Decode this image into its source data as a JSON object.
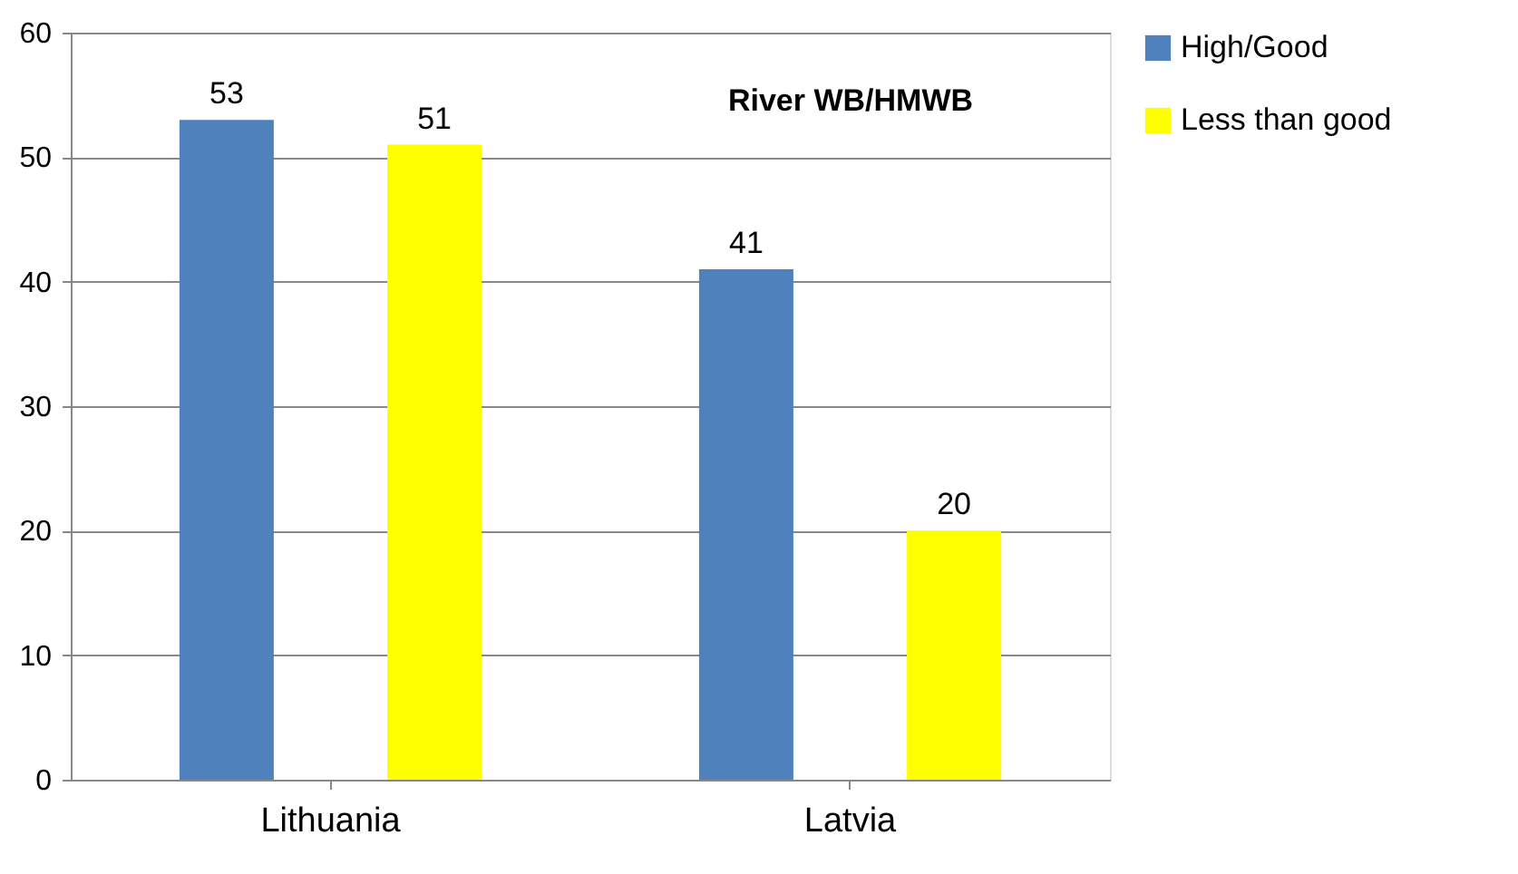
{
  "chart_data": {
    "type": "bar",
    "title": "River WB/HMWB",
    "categories": [
      "Lithuania",
      "Latvia"
    ],
    "series": [
      {
        "name": "High/Good",
        "color": "#4f81bd",
        "values": [
          53,
          41
        ]
      },
      {
        "name": "Less than good",
        "color": "#ffff00",
        "values": [
          51,
          20
        ]
      }
    ],
    "ylim": [
      0,
      60
    ],
    "yticks": [
      0,
      10,
      20,
      30,
      40,
      50,
      60
    ],
    "grid": "y",
    "legend": "right",
    "data_labels": true
  }
}
